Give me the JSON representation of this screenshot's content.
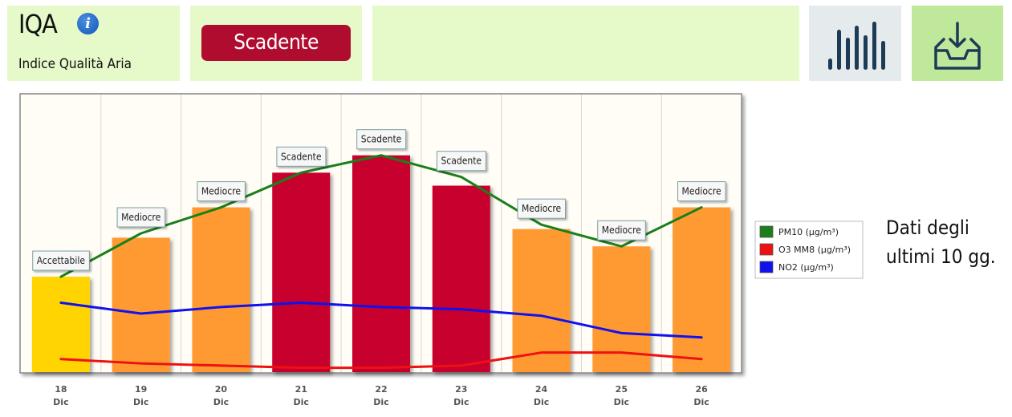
{
  "header": {
    "title": "IQA",
    "subtitle": "Indice Qualità Aria",
    "current_level": "Scadente",
    "current_level_color": "#b00c2f",
    "icons": [
      "info-icon",
      "bar-chart-icon",
      "download-tray-icon"
    ]
  },
  "note": {
    "line1": "Dati degli",
    "line2": "ultimi 10 gg."
  },
  "chart_data": {
    "type": "bar",
    "categories": [
      {
        "day": "18",
        "month": "Dic"
      },
      {
        "day": "19",
        "month": "Dic"
      },
      {
        "day": "20",
        "month": "Dic"
      },
      {
        "day": "21",
        "month": "Dic"
      },
      {
        "day": "22",
        "month": "Dic"
      },
      {
        "day": "23",
        "month": "Dic"
      },
      {
        "day": "24",
        "month": "Dic"
      },
      {
        "day": "25",
        "month": "Dic"
      },
      {
        "day": "26",
        "month": "Dic"
      }
    ],
    "bars": {
      "values": [
        22,
        31,
        38,
        46,
        50,
        43,
        33,
        29,
        38
      ],
      "labels": [
        "Accettabile",
        "Mediocre",
        "Mediocre",
        "Scadente",
        "Scadente",
        "Scadente",
        "Mediocre",
        "Mediocre",
        "Mediocre"
      ],
      "colors": [
        "#ffd400",
        "#ff9a33",
        "#ff9a33",
        "#c8002e",
        "#c8002e",
        "#c8002e",
        "#ff9a33",
        "#ff9a33",
        "#ff9a33"
      ]
    },
    "series": [
      {
        "name": "PM10 (µg/m³)",
        "color": "#1a7f1a",
        "values": [
          22,
          32,
          38,
          46,
          50,
          45,
          34,
          29,
          38
        ]
      },
      {
        "name": "O3 MM8 (µg/m³)",
        "color": "#ee1111",
        "values": [
          3,
          2,
          1.5,
          1,
          1,
          1.5,
          4.5,
          4.5,
          3
        ]
      },
      {
        "name": "NO2 (µg/m³)",
        "color": "#1111ee",
        "values": [
          16,
          13.5,
          15,
          16,
          15,
          14.5,
          13,
          9,
          8
        ]
      }
    ],
    "ylim": [
      0,
      64
    ],
    "grid": true,
    "legend": "right"
  }
}
